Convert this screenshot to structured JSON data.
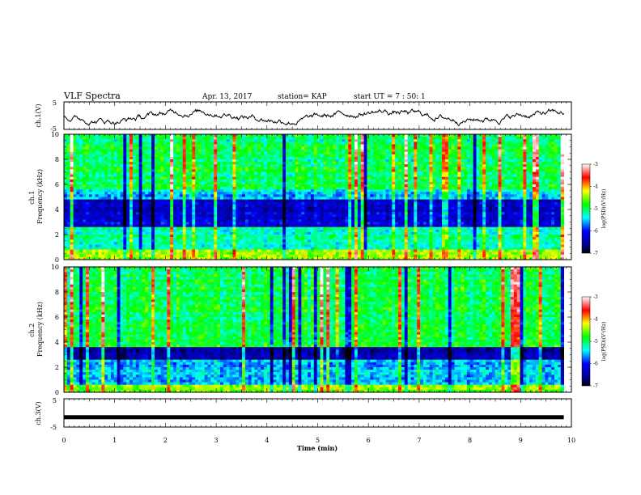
{
  "header": {
    "title": "VLF Spectra",
    "date": "Apr. 13, 2017",
    "station": "station= KAP",
    "start": "start  UT =   7 : 50: 1"
  },
  "chart_data": [
    {
      "type": "line",
      "panel": "ch1-waveform",
      "ylabel": "ch.1(V)",
      "ylim": [
        -5,
        5
      ],
      "yticks": [
        "5",
        "-5"
      ],
      "xlim": [
        0,
        10
      ],
      "color": "#000000"
    },
    {
      "type": "heatmap",
      "panel": "ch1-spectrogram",
      "ylabel": "ch.1\nFrequency (kHz)",
      "ylim": [
        0,
        10
      ],
      "yticks": [
        "0",
        "2",
        "4",
        "6",
        "8",
        "10"
      ],
      "xlim": [
        0,
        9.85
      ],
      "colorbar": {
        "label": "log(PSD)(V²/Hz)",
        "range": [
          -7,
          -3
        ],
        "ticks": [
          "-3",
          "-4",
          "-5",
          "-6",
          "-7"
        ]
      }
    },
    {
      "type": "heatmap",
      "panel": "ch2-spectrogram",
      "ylabel": "ch.2\nFrequency (kHz)",
      "ylim": [
        0,
        10
      ],
      "yticks": [
        "0",
        "2",
        "4",
        "6",
        "8",
        "10"
      ],
      "xlim": [
        0,
        9.85
      ],
      "colorbar": {
        "label": "log(PSD)(V²/Hz)",
        "range": [
          -7,
          -3
        ],
        "ticks": [
          "-3",
          "-4",
          "-5",
          "-6",
          "-7"
        ]
      }
    },
    {
      "type": "line",
      "panel": "ch3-waveform",
      "ylabel": "ch.3(V)",
      "ylim": [
        -5,
        5
      ],
      "yticks": [
        "5",
        "-5"
      ],
      "xlim": [
        0,
        10
      ],
      "series": [
        {
          "values_constant": -1.5
        }
      ]
    }
  ],
  "xaxis": {
    "label": "Time (min)",
    "ticks": [
      "0",
      "1",
      "2",
      "3",
      "4",
      "5",
      "6",
      "7",
      "8",
      "9",
      "10"
    ],
    "range": [
      0,
      10
    ]
  },
  "colors": {
    "low": "#000080",
    "mid": "#00ff00",
    "high": "#ff0000"
  }
}
